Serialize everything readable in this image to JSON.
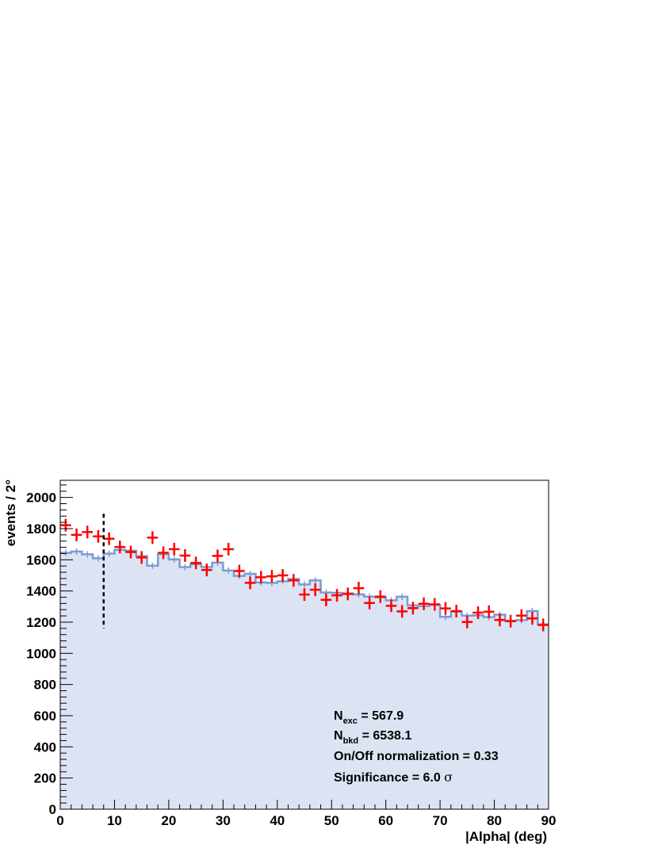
{
  "chart_data": {
    "type": "histogram",
    "xlabel": "|Alpha| (deg)",
    "ylabel": "events / 2°",
    "xlim": [
      0,
      90
    ],
    "ylim": [
      0,
      2110
    ],
    "x_ticks": [
      0,
      10,
      20,
      30,
      40,
      50,
      60,
      70,
      80,
      90
    ],
    "y_ticks": [
      0,
      200,
      400,
      600,
      800,
      1000,
      1200,
      1400,
      1600,
      1800,
      2000
    ],
    "bin_width": 2,
    "cut_line_x": 8,
    "cut_line_ymax": 1895,
    "series": [
      {
        "role": "off",
        "style": "filled-step",
        "color": "#7b9bd2",
        "fill": "#dce4f4",
        "values": [
          1645,
          1653,
          1635,
          1610,
          1640,
          1664,
          1658,
          1624,
          1562,
          1636,
          1602,
          1553,
          1572,
          1554,
          1582,
          1531,
          1497,
          1510,
          1455,
          1452,
          1462,
          1477,
          1442,
          1468,
          1390,
          1388,
          1384,
          1378,
          1364,
          1358,
          1340,
          1363,
          1307,
          1303,
          1311,
          1234,
          1267,
          1242,
          1244,
          1232,
          1248,
          1209,
          1213,
          1271,
          1186
        ]
      },
      {
        "role": "on",
        "style": "error-cross",
        "color": "#ff0000",
        "values": [
          1822,
          1760,
          1778,
          1750,
          1735,
          1682,
          1650,
          1615,
          1742,
          1645,
          1668,
          1627,
          1580,
          1535,
          1625,
          1668,
          1528,
          1452,
          1488,
          1494,
          1500,
          1468,
          1377,
          1408,
          1343,
          1372,
          1381,
          1418,
          1323,
          1364,
          1305,
          1269,
          1290,
          1318,
          1314,
          1288,
          1271,
          1201,
          1261,
          1267,
          1214,
          1206,
          1242,
          1224,
          1182
        ]
      }
    ]
  },
  "stats": {
    "n_exc_main": "N",
    "n_exc_sub": "exc",
    "n_exc_value": " = 567.9",
    "n_bkd_main": "N",
    "n_bkd_sub": "bkd",
    "n_bkd_value": " = 6538.1",
    "normalization": "On/Off normalization = 0.33",
    "significance": "Significance = 6.0 ",
    "sigma": "σ"
  }
}
